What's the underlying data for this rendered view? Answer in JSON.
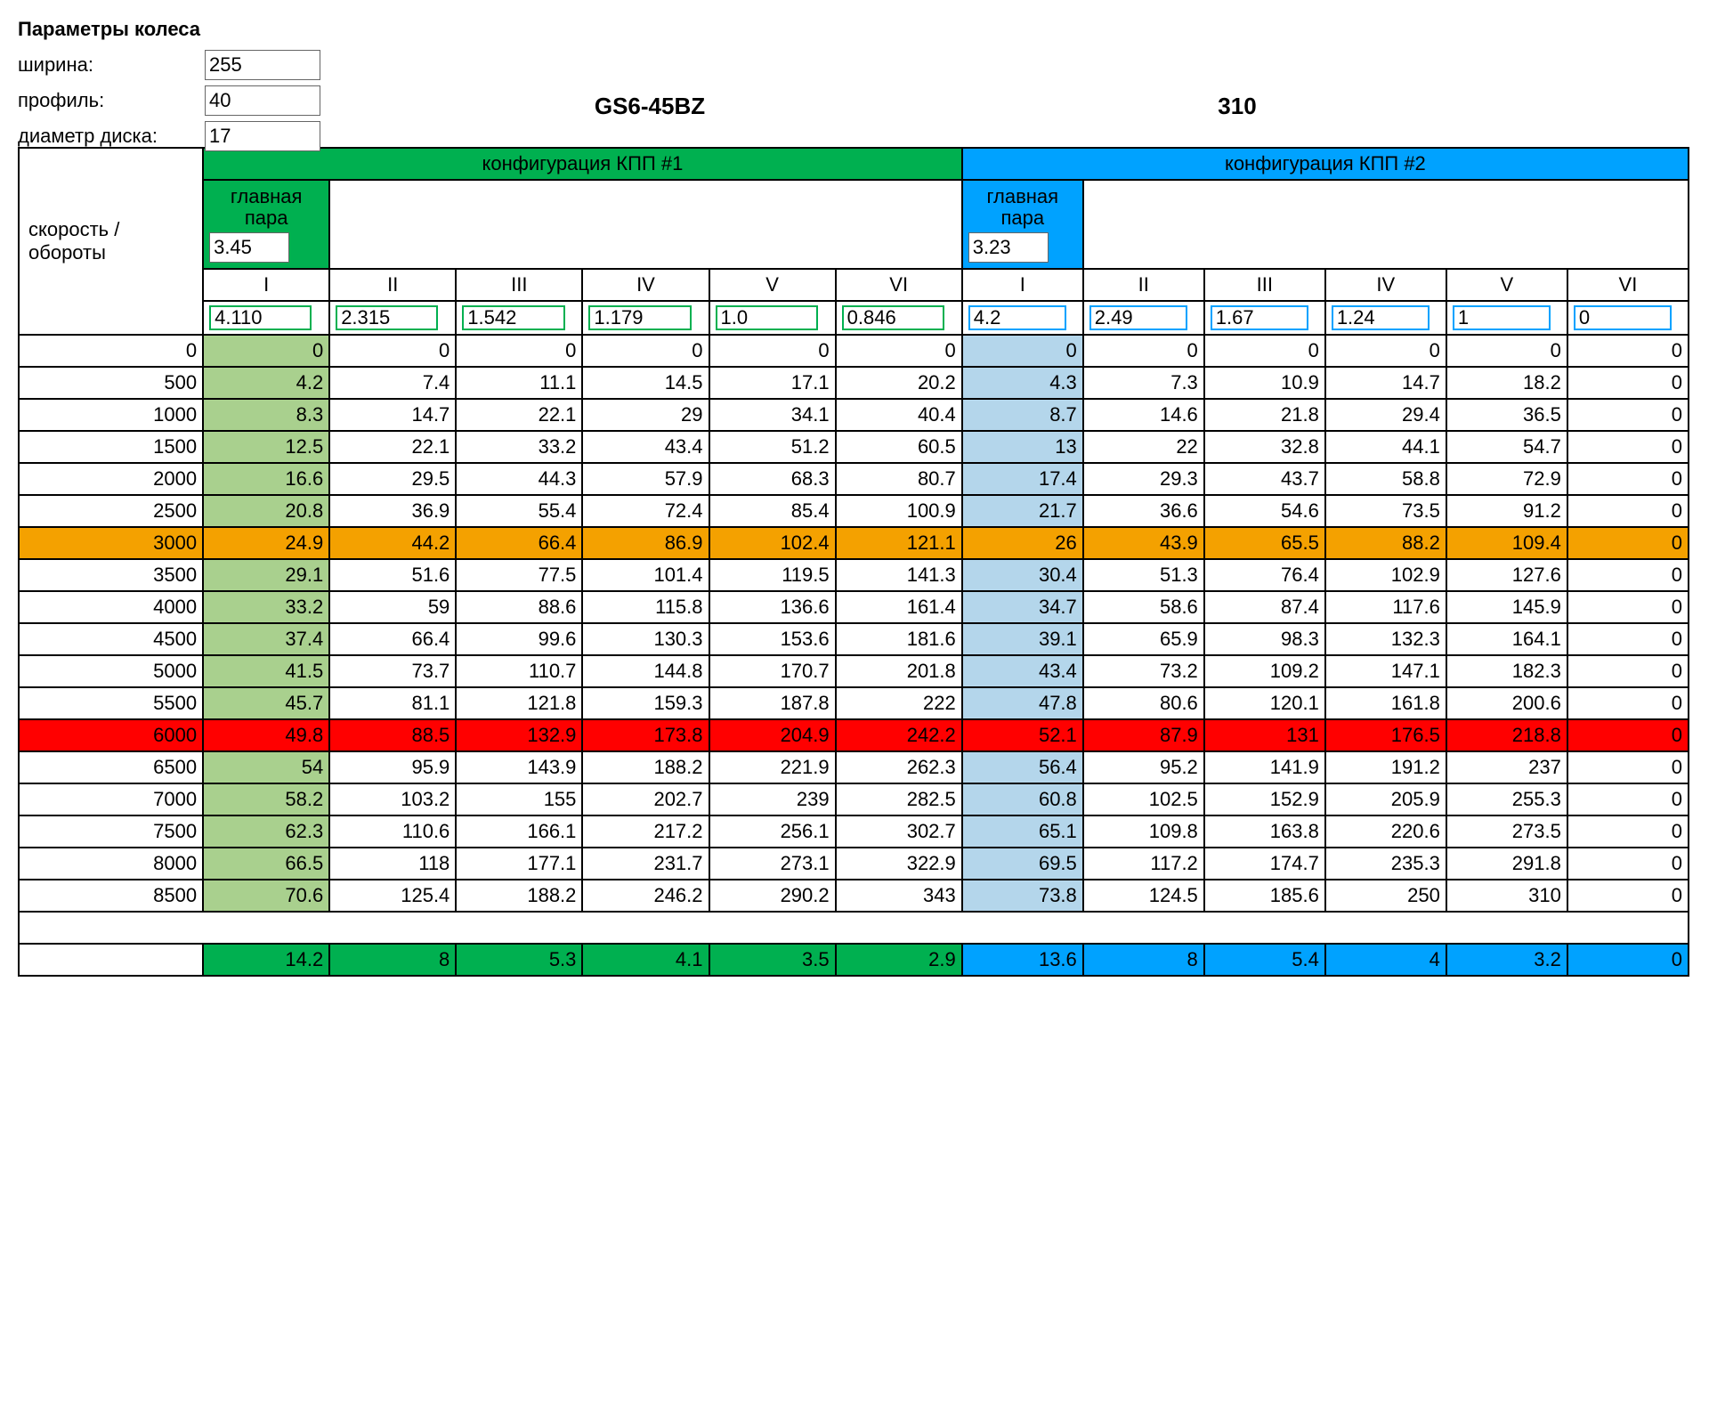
{
  "colors": {
    "green_header": "#00b050",
    "blue_header": "#00a2ff",
    "green_cell": "#a9d08e",
    "blue_cell": "#b4d6eb",
    "orange_row": "#f4a100",
    "red_row": "#ff0000",
    "border": "#000000",
    "bg": "#ffffff"
  },
  "params": {
    "title": "Параметры колеса",
    "width_label": "ширина:",
    "profile_label": "профиль:",
    "disc_label": "диаметр диска:",
    "width_value": "255",
    "profile_value": "40",
    "disc_value": "17"
  },
  "titles": {
    "trans1": "GS6-45BZ",
    "trans2": "310"
  },
  "header": {
    "speed_label": "скорость / обороты",
    "config1": "конфигурация КПП #1",
    "config2": "конфигурация КПП #2",
    "final_drive_label": "главная пара",
    "final_drive_1": "3.45",
    "final_drive_2": "3.23",
    "gear_labels": [
      "I",
      "II",
      "III",
      "IV",
      "V",
      "VI"
    ],
    "ratios1": [
      "4.110",
      "2.315",
      "1.542",
      "1.179",
      "1.0",
      "0.846"
    ],
    "ratios2": [
      "4.2",
      "2.49",
      "1.67",
      "1.24",
      "1",
      "0"
    ]
  },
  "rows": [
    {
      "rpm": "0",
      "c1": [
        "0",
        "0",
        "0",
        "0",
        "0",
        "0"
      ],
      "c2": [
        "0",
        "0",
        "0",
        "0",
        "0",
        "0"
      ]
    },
    {
      "rpm": "500",
      "c1": [
        "4.2",
        "7.4",
        "11.1",
        "14.5",
        "17.1",
        "20.2"
      ],
      "c2": [
        "4.3",
        "7.3",
        "10.9",
        "14.7",
        "18.2",
        "0"
      ]
    },
    {
      "rpm": "1000",
      "c1": [
        "8.3",
        "14.7",
        "22.1",
        "29",
        "34.1",
        "40.4"
      ],
      "c2": [
        "8.7",
        "14.6",
        "21.8",
        "29.4",
        "36.5",
        "0"
      ]
    },
    {
      "rpm": "1500",
      "c1": [
        "12.5",
        "22.1",
        "33.2",
        "43.4",
        "51.2",
        "60.5"
      ],
      "c2": [
        "13",
        "22",
        "32.8",
        "44.1",
        "54.7",
        "0"
      ]
    },
    {
      "rpm": "2000",
      "c1": [
        "16.6",
        "29.5",
        "44.3",
        "57.9",
        "68.3",
        "80.7"
      ],
      "c2": [
        "17.4",
        "29.3",
        "43.7",
        "58.8",
        "72.9",
        "0"
      ]
    },
    {
      "rpm": "2500",
      "c1": [
        "20.8",
        "36.9",
        "55.4",
        "72.4",
        "85.4",
        "100.9"
      ],
      "c2": [
        "21.7",
        "36.6",
        "54.6",
        "73.5",
        "91.2",
        "0"
      ]
    },
    {
      "rpm": "3000",
      "hl": "orange",
      "c1": [
        "24.9",
        "44.2",
        "66.4",
        "86.9",
        "102.4",
        "121.1"
      ],
      "c2": [
        "26",
        "43.9",
        "65.5",
        "88.2",
        "109.4",
        "0"
      ]
    },
    {
      "rpm": "3500",
      "c1": [
        "29.1",
        "51.6",
        "77.5",
        "101.4",
        "119.5",
        "141.3"
      ],
      "c2": [
        "30.4",
        "51.3",
        "76.4",
        "102.9",
        "127.6",
        "0"
      ]
    },
    {
      "rpm": "4000",
      "c1": [
        "33.2",
        "59",
        "88.6",
        "115.8",
        "136.6",
        "161.4"
      ],
      "c2": [
        "34.7",
        "58.6",
        "87.4",
        "117.6",
        "145.9",
        "0"
      ]
    },
    {
      "rpm": "4500",
      "c1": [
        "37.4",
        "66.4",
        "99.6",
        "130.3",
        "153.6",
        "181.6"
      ],
      "c2": [
        "39.1",
        "65.9",
        "98.3",
        "132.3",
        "164.1",
        "0"
      ]
    },
    {
      "rpm": "5000",
      "c1": [
        "41.5",
        "73.7",
        "110.7",
        "144.8",
        "170.7",
        "201.8"
      ],
      "c2": [
        "43.4",
        "73.2",
        "109.2",
        "147.1",
        "182.3",
        "0"
      ]
    },
    {
      "rpm": "5500",
      "c1": [
        "45.7",
        "81.1",
        "121.8",
        "159.3",
        "187.8",
        "222"
      ],
      "c2": [
        "47.8",
        "80.6",
        "120.1",
        "161.8",
        "200.6",
        "0"
      ]
    },
    {
      "rpm": "6000",
      "hl": "red",
      "c1": [
        "49.8",
        "88.5",
        "132.9",
        "173.8",
        "204.9",
        "242.2"
      ],
      "c2": [
        "52.1",
        "87.9",
        "131",
        "176.5",
        "218.8",
        "0"
      ]
    },
    {
      "rpm": "6500",
      "c1": [
        "54",
        "95.9",
        "143.9",
        "188.2",
        "221.9",
        "262.3"
      ],
      "c2": [
        "56.4",
        "95.2",
        "141.9",
        "191.2",
        "237",
        "0"
      ]
    },
    {
      "rpm": "7000",
      "c1": [
        "58.2",
        "103.2",
        "155",
        "202.7",
        "239",
        "282.5"
      ],
      "c2": [
        "60.8",
        "102.5",
        "152.9",
        "205.9",
        "255.3",
        "0"
      ]
    },
    {
      "rpm": "7500",
      "c1": [
        "62.3",
        "110.6",
        "166.1",
        "217.2",
        "256.1",
        "302.7"
      ],
      "c2": [
        "65.1",
        "109.8",
        "163.8",
        "220.6",
        "273.5",
        "0"
      ]
    },
    {
      "rpm": "8000",
      "c1": [
        "66.5",
        "118",
        "177.1",
        "231.7",
        "273.1",
        "322.9"
      ],
      "c2": [
        "69.5",
        "117.2",
        "174.7",
        "235.3",
        "291.8",
        "0"
      ]
    },
    {
      "rpm": "8500",
      "c1": [
        "70.6",
        "125.4",
        "188.2",
        "246.2",
        "290.2",
        "343"
      ],
      "c2": [
        "73.8",
        "124.5",
        "185.6",
        "250",
        "310",
        "0"
      ]
    }
  ],
  "summary": {
    "c1": [
      "14.2",
      "8",
      "5.3",
      "4.1",
      "3.5",
      "2.9"
    ],
    "c2": [
      "13.6",
      "8",
      "5.4",
      "4",
      "3.2",
      "0"
    ]
  }
}
